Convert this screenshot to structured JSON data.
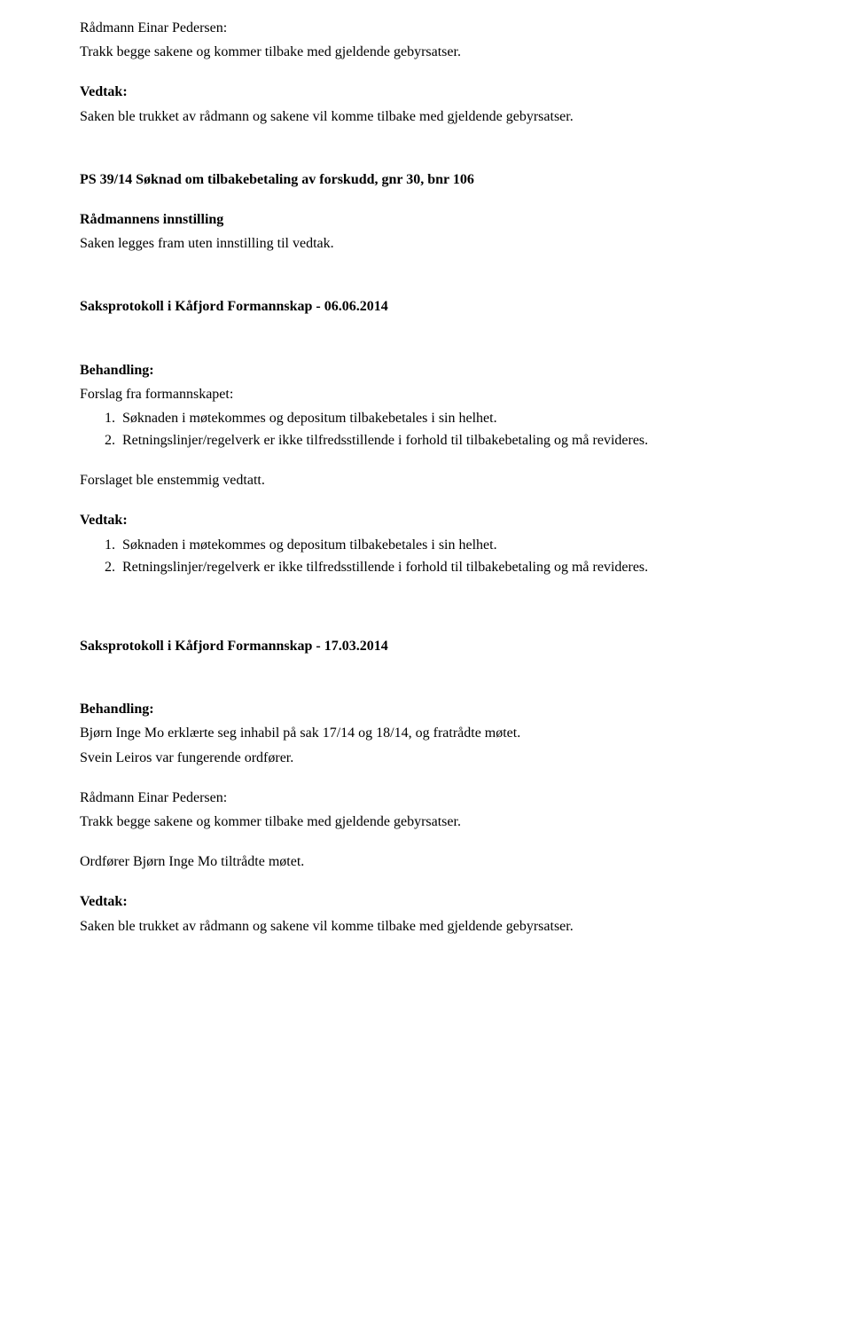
{
  "sec1": {
    "line1": "Rådmann Einar Pedersen:",
    "line2": "Trakk begge sakene og kommer tilbake med gjeldende gebyrsatser.",
    "vedtak_label": "Vedtak:",
    "vedtak_body": "Saken ble trukket av rådmann og sakene vil komme tilbake med gjeldende gebyrsatser."
  },
  "sec2": {
    "title": "PS 39/14 Søknad om tilbakebetaling av forskudd, gnr 30, bnr 106",
    "sub1": "Rådmannens innstilling",
    "body1": "Saken legges fram uten innstilling til vedtak."
  },
  "proto1": {
    "title": "Saksprotokoll i Kåfjord Formannskap - 06.06.2014",
    "beh_label": "Behandling:",
    "forslag_intro": "Forslag fra formannskapet:",
    "item1": "Søknaden i møtekommes og depositum tilbakebetales i sin helhet.",
    "item2": "Retningslinjer/regelverk er ikke tilfredsstillende i forhold til tilbakebetaling og må revideres.",
    "enst": "Forslaget ble enstemmig vedtatt.",
    "vedtak_label": "Vedtak:",
    "vitem1": "Søknaden i møtekommes og depositum tilbakebetales i sin helhet.",
    "vitem2": "Retningslinjer/regelverk er ikke tilfredsstillende i forhold til tilbakebetaling og må revideres."
  },
  "proto2": {
    "title": "Saksprotokoll i Kåfjord Formannskap - 17.03.2014",
    "beh_label": "Behandling:",
    "p1": "Bjørn Inge Mo erklærte seg inhabil på sak 17/14 og 18/14, og fratrådte møtet.",
    "p2": "Svein Leiros var fungerende ordfører.",
    "p3": "Rådmann Einar Pedersen:",
    "p4": "Trakk begge sakene og kommer tilbake med gjeldende gebyrsatser.",
    "p5": "Ordfører Bjørn Inge Mo tiltrådte møtet.",
    "vedtak_label": "Vedtak:",
    "vedtak_body": "Saken ble trukket av rådmann og sakene vil komme tilbake med gjeldende gebyrsatser."
  }
}
